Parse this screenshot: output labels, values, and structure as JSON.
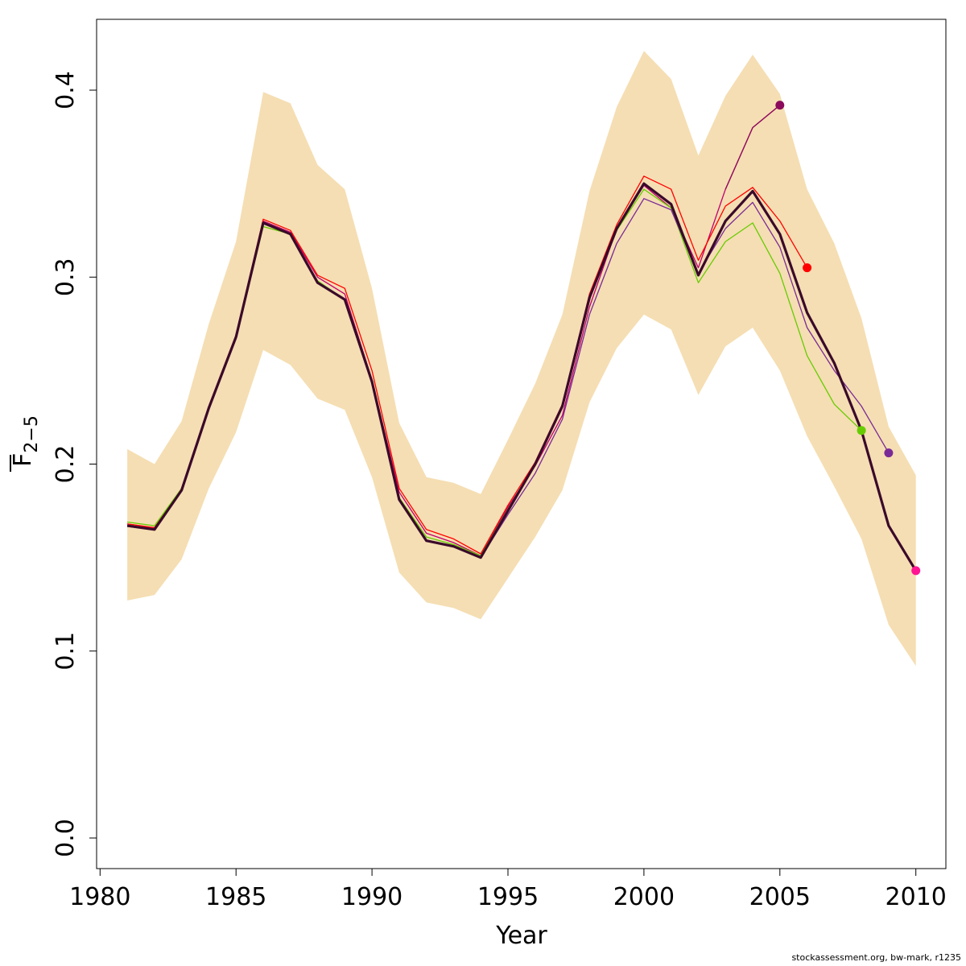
{
  "chart_data": {
    "type": "line",
    "title": "",
    "xlabel": "Year",
    "ylabel_main": "F",
    "ylabel_sub": "2−5",
    "xlim": [
      1980,
      2011
    ],
    "ylim": [
      0.0,
      0.43
    ],
    "x_ticks": [
      1980,
      1985,
      1990,
      1995,
      2000,
      2005,
      2010
    ],
    "y_ticks": [
      0.0,
      0.1,
      0.2,
      0.3,
      0.4
    ],
    "x_tick_labels": [
      "1980",
      "1985",
      "1990",
      "1995",
      "2000",
      "2005",
      "2010"
    ],
    "y_tick_labels": [
      "0.0",
      "0.1",
      "0.2",
      "0.3",
      "0.4"
    ],
    "grid": false,
    "band": {
      "color": "#f5deb3",
      "x": [
        1981,
        1982,
        1983,
        1984,
        1985,
        1986,
        1987,
        1988,
        1989,
        1990,
        1991,
        1992,
        1993,
        1994,
        1995,
        1996,
        1997,
        1998,
        1999,
        2000,
        2001,
        2002,
        2003,
        2004,
        2005,
        2006,
        2007,
        2008,
        2009,
        2010
      ],
      "upper": [
        0.208,
        0.2,
        0.223,
        0.275,
        0.319,
        0.399,
        0.393,
        0.36,
        0.347,
        0.294,
        0.222,
        0.193,
        0.19,
        0.184,
        0.213,
        0.243,
        0.28,
        0.346,
        0.391,
        0.421,
        0.406,
        0.365,
        0.397,
        0.419,
        0.398,
        0.347,
        0.318,
        0.278,
        0.22,
        0.194
      ],
      "lower": [
        0.127,
        0.13,
        0.149,
        0.187,
        0.217,
        0.261,
        0.253,
        0.235,
        0.229,
        0.193,
        0.142,
        0.126,
        0.123,
        0.117,
        0.139,
        0.161,
        0.186,
        0.233,
        0.262,
        0.28,
        0.272,
        0.237,
        0.263,
        0.273,
        0.25,
        0.215,
        0.188,
        0.16,
        0.114,
        0.092
      ]
    },
    "series": [
      {
        "color": "#c0006e",
        "width": 1.3,
        "end_point": false,
        "x": [
          1981,
          1982,
          1983,
          1984,
          1985,
          1986,
          1987,
          1988,
          1989,
          1990,
          1991,
          1992,
          1993,
          1994,
          1995,
          1996,
          1997,
          1998,
          1999,
          2000,
          2001,
          2002,
          2003,
          2004,
          2005
        ],
        "values": [
          0.167,
          0.166,
          0.186,
          0.23,
          0.268,
          0.33,
          0.324,
          0.3,
          0.291,
          0.245,
          0.185,
          0.163,
          0.158,
          0.151,
          0.177,
          0.199,
          0.226,
          0.284,
          0.326,
          0.349,
          0.337,
          0.305,
          0.347,
          0.38,
          0.392
        ]
      },
      {
        "color": "#8b0a5c",
        "width": 1.3,
        "end_point": true,
        "x": [
          2003,
          2004,
          2005
        ],
        "values": [
          0.347,
          0.38,
          0.392
        ]
      },
      {
        "color": "#ff0000",
        "width": 1.3,
        "end_point": true,
        "x": [
          1981,
          1982,
          1983,
          1984,
          1985,
          1986,
          1987,
          1988,
          1989,
          1990,
          1991,
          1992,
          1993,
          1994,
          1995,
          1996,
          1997,
          1998,
          1999,
          2000,
          2001,
          2002,
          2003,
          2004,
          2005,
          2006
        ],
        "values": [
          0.168,
          0.166,
          0.187,
          0.231,
          0.269,
          0.331,
          0.325,
          0.301,
          0.294,
          0.25,
          0.187,
          0.165,
          0.16,
          0.152,
          0.178,
          0.201,
          0.232,
          0.291,
          0.328,
          0.354,
          0.347,
          0.309,
          0.338,
          0.348,
          0.33,
          0.305
        ]
      },
      {
        "color": "#66cc00",
        "width": 1.3,
        "end_point": true,
        "x": [
          1981,
          1982,
          1983,
          1984,
          1985,
          1986,
          1987,
          1988,
          1989,
          1990,
          1991,
          1992,
          1993,
          1994,
          1995,
          1996,
          1997,
          1998,
          1999,
          2000,
          2001,
          2002,
          2003,
          2004,
          2005,
          2006,
          2007,
          2008
        ],
        "values": [
          0.169,
          0.167,
          0.187,
          0.23,
          0.267,
          0.327,
          0.323,
          0.298,
          0.288,
          0.244,
          0.182,
          0.161,
          0.157,
          0.151,
          0.176,
          0.2,
          0.23,
          0.289,
          0.325,
          0.347,
          0.337,
          0.297,
          0.319,
          0.329,
          0.302,
          0.258,
          0.232,
          0.218
        ]
      },
      {
        "color": "#7a2a96",
        "width": 1.3,
        "end_point": true,
        "x": [
          1981,
          1982,
          1983,
          1984,
          1985,
          1986,
          1987,
          1988,
          1989,
          1990,
          1991,
          1992,
          1993,
          1994,
          1995,
          1996,
          1997,
          1998,
          1999,
          2000,
          2001,
          2002,
          2003,
          2004,
          2005,
          2006,
          2007,
          2008,
          2009
        ],
        "values": [
          0.167,
          0.165,
          0.186,
          0.229,
          0.267,
          0.329,
          0.323,
          0.297,
          0.288,
          0.243,
          0.181,
          0.159,
          0.156,
          0.15,
          0.173,
          0.195,
          0.224,
          0.28,
          0.318,
          0.342,
          0.336,
          0.302,
          0.326,
          0.34,
          0.316,
          0.273,
          0.25,
          0.231,
          0.206
        ]
      },
      {
        "color": "#3a0a2a",
        "width": 3.2,
        "end_point": false,
        "x": [
          1981,
          1982,
          1983,
          1984,
          1985,
          1986,
          1987,
          1988,
          1989,
          1990,
          1991,
          1992,
          1993,
          1994,
          1995,
          1996,
          1997,
          1998,
          1999,
          2000,
          2001,
          2002,
          2003,
          2004,
          2005,
          2006,
          2007,
          2008,
          2009,
          2010
        ],
        "values": [
          0.167,
          0.165,
          0.186,
          0.23,
          0.268,
          0.329,
          0.323,
          0.297,
          0.288,
          0.244,
          0.181,
          0.159,
          0.156,
          0.15,
          0.175,
          0.2,
          0.231,
          0.289,
          0.326,
          0.35,
          0.339,
          0.301,
          0.33,
          0.346,
          0.323,
          0.281,
          0.254,
          0.218,
          0.167,
          0.143
        ]
      },
      {
        "color": "#ff1493",
        "width": 1.3,
        "end_point": true,
        "x": [
          2010
        ],
        "values": [
          0.143
        ]
      }
    ]
  },
  "footer": "stockassessment.org, bw-mark, r1235"
}
